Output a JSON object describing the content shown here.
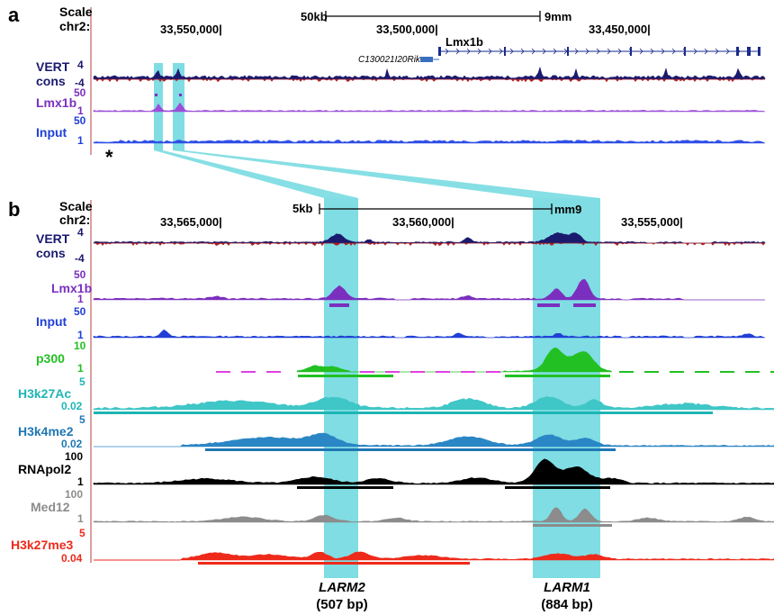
{
  "panel_a": {
    "letter": "a",
    "scale_label": "Scale",
    "chr_label": "chr2:",
    "scale_bar": "50kb",
    "assembly": "9mm",
    "coords": [
      "33,550,000|",
      "33,500,000|",
      "33,450,000|"
    ],
    "gene_main": "Lmx1b",
    "gene_small": "C130021I20Rik",
    "tracks": [
      {
        "name": "VERT",
        "name2": "cons",
        "color": "#1a1a6e",
        "ticks": [
          "4",
          "-4"
        ]
      },
      {
        "name": "Lmx1b",
        "color": "#7b2fbf",
        "ticks": [
          "50",
          "1"
        ]
      },
      {
        "name": "Input",
        "color": "#1f3fd6",
        "ticks": [
          "50",
          "1"
        ]
      }
    ],
    "asterisk": "*"
  },
  "panel_b": {
    "letter": "b",
    "scale_label": "Scale",
    "chr_label": "chr2:",
    "scale_bar": "5kb",
    "assembly": "mm9",
    "coords": [
      "33,565,000|",
      "33,560,000|",
      "33,555,000|"
    ],
    "tracks": [
      {
        "name": "VERT",
        "name2": "cons",
        "color": "#1a1a6e",
        "ticks": [
          "4",
          "-4"
        ]
      },
      {
        "name": "Lmx1b",
        "color": "#7b2fbf",
        "ticks": [
          "50",
          "1"
        ]
      },
      {
        "name": "Input",
        "color": "#1f3fd6",
        "ticks": [
          "50",
          "1"
        ]
      },
      {
        "name": "p300",
        "color": "#22c022",
        "ticks": [
          "10",
          "1"
        ]
      },
      {
        "name": "H3k27Ac",
        "color": "#1fb5b5",
        "ticks": [
          "5",
          "0.02"
        ]
      },
      {
        "name": "H3k4me2",
        "color": "#1f77b4",
        "ticks": [
          "5",
          "0.02"
        ]
      },
      {
        "name": "RNApol2",
        "color": "#000000",
        "ticks": [
          "100",
          "1"
        ]
      },
      {
        "name": "Med12",
        "color": "#8c8c8c",
        "ticks": [
          "100",
          "1"
        ]
      },
      {
        "name": "H3k27me3",
        "color": "#ee2a1a",
        "ticks": [
          "5",
          "0.04"
        ]
      }
    ],
    "regions": [
      {
        "name": "LARM2",
        "size": "(507 bp)"
      },
      {
        "name": "LARM1",
        "size": "(884 bp)"
      }
    ]
  },
  "colors": {
    "highlight": "#7fdde3",
    "ruler": "#d9a0a0"
  }
}
